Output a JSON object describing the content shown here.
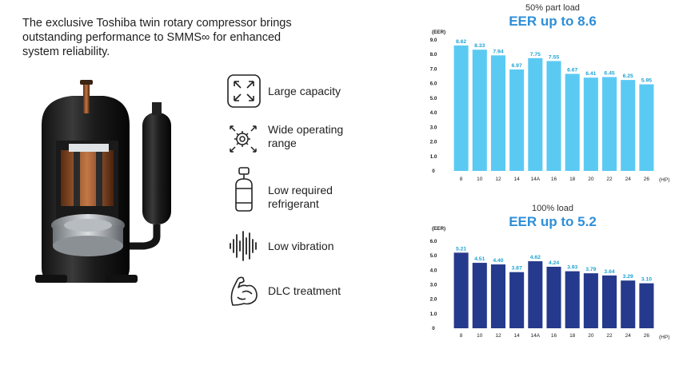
{
  "intro": {
    "line1": "The exclusive Toshiba twin rotary compressor brings",
    "line2": "outstanding performance to SMMS∞ for enhanced",
    "line3": "system reliability."
  },
  "features": [
    {
      "icon": "expand-arrows-icon",
      "line1": "Large capacity",
      "line2": ""
    },
    {
      "icon": "gear-range-icon",
      "line1": "Wide operating",
      "line2": "range"
    },
    {
      "icon": "refrigerant-tank-icon",
      "line1": "Low required",
      "line2": "refrigerant"
    },
    {
      "icon": "waveform-icon",
      "line1": "Low vibration",
      "line2": ""
    },
    {
      "icon": "muscle-arm-icon",
      "line1": "DLC treatment",
      "line2": ""
    }
  ],
  "chart_data": [
    {
      "type": "bar",
      "subtitle": "50% part load",
      "title": "EER up to 8.6",
      "ylabel": "(EER)",
      "xunit": "(HP)",
      "categories": [
        "8",
        "10",
        "12",
        "14",
        "14A",
        "16",
        "18",
        "20",
        "22",
        "24",
        "26"
      ],
      "values": [
        8.62,
        8.33,
        7.94,
        6.97,
        7.75,
        7.55,
        6.67,
        6.41,
        6.45,
        6.25,
        5.95
      ],
      "labels": [
        "8.62",
        "8.33",
        "7.94",
        "6.97",
        "7.75",
        "7.55",
        "6.67",
        "6.41",
        "6.45",
        "6.25",
        "5.95"
      ],
      "yticks": [
        "0",
        "1.0",
        "2.0",
        "3.0",
        "4.0",
        "5.0",
        "6.0",
        "7.0",
        "8.0",
        "9.0"
      ],
      "ylim": [
        0,
        9.0
      ],
      "bar_color": "#5bcaf3"
    },
    {
      "type": "bar",
      "subtitle": "100% load",
      "title": "EER up to 5.2",
      "ylabel": "(EER)",
      "xunit": "(HP)",
      "categories": [
        "8",
        "10",
        "12",
        "14",
        "14A",
        "16",
        "18",
        "20",
        "22",
        "24",
        "26"
      ],
      "values": [
        5.21,
        4.51,
        4.4,
        3.87,
        4.62,
        4.24,
        3.93,
        3.79,
        3.64,
        3.29,
        3.1
      ],
      "labels": [
        "5.21",
        "4.51",
        "4.40",
        "3.87",
        "4.62",
        "4.24",
        "3.93",
        "3.79",
        "3.64",
        "3.29",
        "3.10"
      ],
      "yticks": [
        "0",
        "1.0",
        "2.0",
        "3.0",
        "4.0",
        "5.0",
        "6.0"
      ],
      "ylim": [
        0,
        6.0
      ],
      "bar_color": "#253a8c"
    }
  ]
}
